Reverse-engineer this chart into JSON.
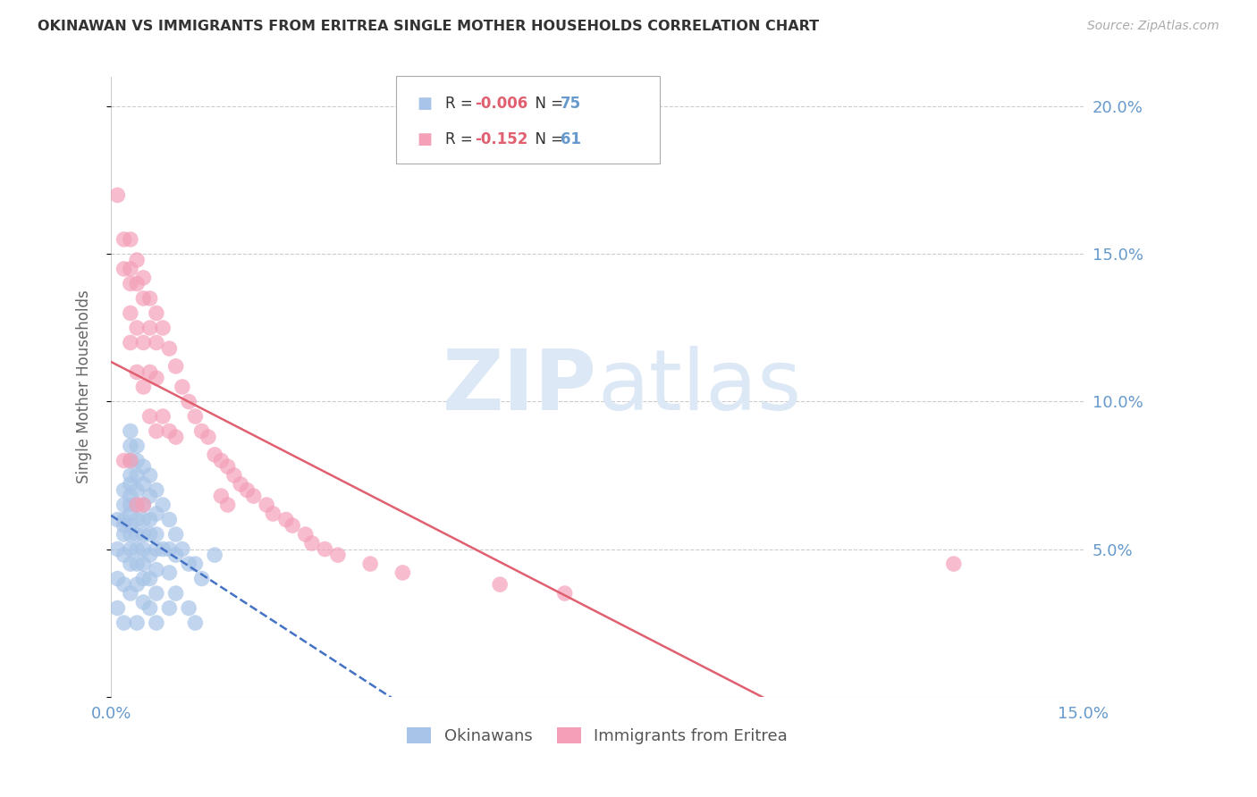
{
  "title": "OKINAWAN VS IMMIGRANTS FROM ERITREA SINGLE MOTHER HOUSEHOLDS CORRELATION CHART",
  "source": "Source: ZipAtlas.com",
  "ylabel": "Single Mother Households",
  "xlim": [
    0.0,
    0.15
  ],
  "ylim": [
    0.0,
    0.21
  ],
  "color_blue": "#a8c4e8",
  "color_pink": "#f4a0b8",
  "line_color_blue": "#4472c4",
  "line_color_pink": "#e06070",
  "axis_color": "#6699cc",
  "watermark_color": "#dce8f5",
  "grid_color": "#cccccc",
  "background_color": "#ffffff",
  "okinawan_x": [
    0.001,
    0.001,
    0.001,
    0.001,
    0.002,
    0.002,
    0.002,
    0.002,
    0.002,
    0.002,
    0.002,
    0.002,
    0.003,
    0.003,
    0.003,
    0.003,
    0.003,
    0.003,
    0.003,
    0.003,
    0.003,
    0.003,
    0.003,
    0.003,
    0.003,
    0.004,
    0.004,
    0.004,
    0.004,
    0.004,
    0.004,
    0.004,
    0.004,
    0.004,
    0.004,
    0.004,
    0.005,
    0.005,
    0.005,
    0.005,
    0.005,
    0.005,
    0.005,
    0.005,
    0.005,
    0.006,
    0.006,
    0.006,
    0.006,
    0.006,
    0.006,
    0.006,
    0.007,
    0.007,
    0.007,
    0.007,
    0.007,
    0.007,
    0.007,
    0.008,
    0.008,
    0.009,
    0.009,
    0.009,
    0.009,
    0.01,
    0.01,
    0.01,
    0.011,
    0.012,
    0.012,
    0.013,
    0.013,
    0.014,
    0.016
  ],
  "okinawan_y": [
    0.06,
    0.05,
    0.04,
    0.03,
    0.07,
    0.065,
    0.06,
    0.058,
    0.055,
    0.048,
    0.038,
    0.025,
    0.09,
    0.085,
    0.08,
    0.075,
    0.072,
    0.068,
    0.065,
    0.062,
    0.058,
    0.055,
    0.05,
    0.045,
    0.035,
    0.085,
    0.08,
    0.075,
    0.07,
    0.065,
    0.06,
    0.055,
    0.05,
    0.045,
    0.038,
    0.025,
    0.078,
    0.072,
    0.065,
    0.06,
    0.055,
    0.05,
    0.045,
    0.04,
    0.032,
    0.075,
    0.068,
    0.06,
    0.055,
    0.048,
    0.04,
    0.03,
    0.07,
    0.062,
    0.055,
    0.05,
    0.043,
    0.035,
    0.025,
    0.065,
    0.05,
    0.06,
    0.05,
    0.042,
    0.03,
    0.055,
    0.048,
    0.035,
    0.05,
    0.045,
    0.03,
    0.045,
    0.025,
    0.04,
    0.048
  ],
  "eritrea_x": [
    0.001,
    0.002,
    0.002,
    0.002,
    0.003,
    0.003,
    0.003,
    0.003,
    0.003,
    0.003,
    0.004,
    0.004,
    0.004,
    0.004,
    0.004,
    0.005,
    0.005,
    0.005,
    0.005,
    0.005,
    0.006,
    0.006,
    0.006,
    0.006,
    0.007,
    0.007,
    0.007,
    0.007,
    0.008,
    0.008,
    0.009,
    0.009,
    0.01,
    0.01,
    0.011,
    0.012,
    0.013,
    0.014,
    0.015,
    0.016,
    0.017,
    0.017,
    0.018,
    0.018,
    0.019,
    0.02,
    0.021,
    0.022,
    0.024,
    0.025,
    0.027,
    0.028,
    0.03,
    0.031,
    0.033,
    0.035,
    0.04,
    0.045,
    0.06,
    0.07,
    0.13
  ],
  "eritrea_y": [
    0.17,
    0.155,
    0.145,
    0.08,
    0.155,
    0.145,
    0.14,
    0.13,
    0.12,
    0.08,
    0.148,
    0.14,
    0.125,
    0.11,
    0.065,
    0.142,
    0.135,
    0.12,
    0.105,
    0.065,
    0.135,
    0.125,
    0.11,
    0.095,
    0.13,
    0.12,
    0.108,
    0.09,
    0.125,
    0.095,
    0.118,
    0.09,
    0.112,
    0.088,
    0.105,
    0.1,
    0.095,
    0.09,
    0.088,
    0.082,
    0.08,
    0.068,
    0.078,
    0.065,
    0.075,
    0.072,
    0.07,
    0.068,
    0.065,
    0.062,
    0.06,
    0.058,
    0.055,
    0.052,
    0.05,
    0.048,
    0.045,
    0.042,
    0.038,
    0.035,
    0.045
  ]
}
